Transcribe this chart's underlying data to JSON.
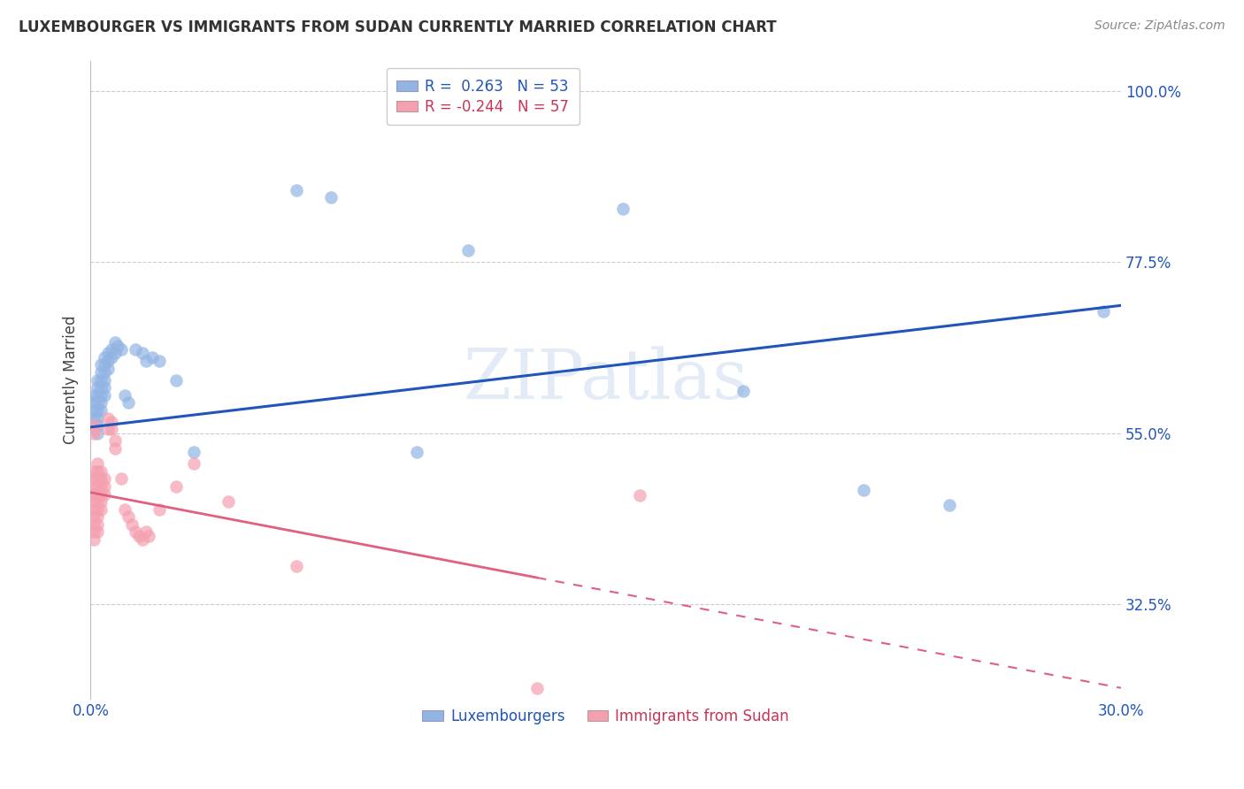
{
  "title": "LUXEMBOURGER VS IMMIGRANTS FROM SUDAN CURRENTLY MARRIED CORRELATION CHART",
  "source": "Source: ZipAtlas.com",
  "ylabel": "Currently Married",
  "y_ticks": [
    0.325,
    0.55,
    0.775,
    1.0
  ],
  "y_tick_labels": [
    "32.5%",
    "55.0%",
    "77.5%",
    "100.0%"
  ],
  "x_min": 0.0,
  "x_max": 0.3,
  "y_min": 0.2,
  "y_max": 1.04,
  "blue_R": 0.263,
  "blue_N": 53,
  "pink_R": -0.244,
  "pink_N": 57,
  "blue_color": "#92B4E3",
  "pink_color": "#F4A0B0",
  "blue_line_color": "#2255BB",
  "pink_line_color": "#E06080",
  "blue_scatter": [
    [
      0.001,
      0.6
    ],
    [
      0.001,
      0.59
    ],
    [
      0.001,
      0.58
    ],
    [
      0.001,
      0.57
    ],
    [
      0.002,
      0.62
    ],
    [
      0.002,
      0.61
    ],
    [
      0.002,
      0.6
    ],
    [
      0.002,
      0.59
    ],
    [
      0.002,
      0.58
    ],
    [
      0.002,
      0.57
    ],
    [
      0.002,
      0.56
    ],
    [
      0.002,
      0.55
    ],
    [
      0.003,
      0.64
    ],
    [
      0.003,
      0.63
    ],
    [
      0.003,
      0.62
    ],
    [
      0.003,
      0.61
    ],
    [
      0.003,
      0.6
    ],
    [
      0.003,
      0.59
    ],
    [
      0.003,
      0.58
    ],
    [
      0.004,
      0.65
    ],
    [
      0.004,
      0.64
    ],
    [
      0.004,
      0.63
    ],
    [
      0.004,
      0.62
    ],
    [
      0.004,
      0.61
    ],
    [
      0.004,
      0.6
    ],
    [
      0.005,
      0.655
    ],
    [
      0.005,
      0.645
    ],
    [
      0.005,
      0.635
    ],
    [
      0.006,
      0.66
    ],
    [
      0.006,
      0.65
    ],
    [
      0.007,
      0.67
    ],
    [
      0.007,
      0.655
    ],
    [
      0.008,
      0.665
    ],
    [
      0.009,
      0.66
    ],
    [
      0.01,
      0.6
    ],
    [
      0.011,
      0.59
    ],
    [
      0.013,
      0.66
    ],
    [
      0.015,
      0.655
    ],
    [
      0.016,
      0.645
    ],
    [
      0.018,
      0.65
    ],
    [
      0.02,
      0.645
    ],
    [
      0.025,
      0.62
    ],
    [
      0.03,
      0.525
    ],
    [
      0.06,
      0.87
    ],
    [
      0.07,
      0.86
    ],
    [
      0.095,
      0.525
    ],
    [
      0.11,
      0.79
    ],
    [
      0.155,
      0.845
    ],
    [
      0.19,
      0.605
    ],
    [
      0.225,
      0.475
    ],
    [
      0.25,
      0.455
    ],
    [
      0.295,
      0.71
    ]
  ],
  "pink_scatter": [
    [
      0.001,
      0.56
    ],
    [
      0.001,
      0.555
    ],
    [
      0.001,
      0.55
    ],
    [
      0.001,
      0.5
    ],
    [
      0.001,
      0.49
    ],
    [
      0.001,
      0.48
    ],
    [
      0.001,
      0.47
    ],
    [
      0.001,
      0.46
    ],
    [
      0.001,
      0.45
    ],
    [
      0.001,
      0.44
    ],
    [
      0.001,
      0.43
    ],
    [
      0.001,
      0.42
    ],
    [
      0.001,
      0.41
    ],
    [
      0.002,
      0.51
    ],
    [
      0.002,
      0.5
    ],
    [
      0.002,
      0.49
    ],
    [
      0.002,
      0.48
    ],
    [
      0.002,
      0.47
    ],
    [
      0.002,
      0.46
    ],
    [
      0.002,
      0.45
    ],
    [
      0.002,
      0.44
    ],
    [
      0.002,
      0.43
    ],
    [
      0.002,
      0.42
    ],
    [
      0.003,
      0.5
    ],
    [
      0.003,
      0.49
    ],
    [
      0.003,
      0.48
    ],
    [
      0.003,
      0.47
    ],
    [
      0.003,
      0.46
    ],
    [
      0.003,
      0.45
    ],
    [
      0.004,
      0.49
    ],
    [
      0.004,
      0.48
    ],
    [
      0.004,
      0.47
    ],
    [
      0.005,
      0.57
    ],
    [
      0.005,
      0.555
    ],
    [
      0.006,
      0.565
    ],
    [
      0.006,
      0.555
    ],
    [
      0.007,
      0.54
    ],
    [
      0.007,
      0.53
    ],
    [
      0.009,
      0.49
    ],
    [
      0.01,
      0.45
    ],
    [
      0.011,
      0.44
    ],
    [
      0.012,
      0.43
    ],
    [
      0.013,
      0.42
    ],
    [
      0.014,
      0.415
    ],
    [
      0.015,
      0.41
    ],
    [
      0.016,
      0.42
    ],
    [
      0.017,
      0.415
    ],
    [
      0.02,
      0.45
    ],
    [
      0.025,
      0.48
    ],
    [
      0.03,
      0.51
    ],
    [
      0.04,
      0.46
    ],
    [
      0.06,
      0.375
    ],
    [
      0.13,
      0.215
    ],
    [
      0.16,
      0.468
    ]
  ],
  "blue_line": [
    [
      0.0,
      0.558
    ],
    [
      0.3,
      0.718
    ]
  ],
  "pink_line_solid": [
    [
      0.0,
      0.472
    ],
    [
      0.13,
      0.36
    ]
  ],
  "pink_line_dashed": [
    [
      0.13,
      0.36
    ],
    [
      0.3,
      0.215
    ]
  ],
  "watermark": "ZIPatlas",
  "legend_label_blue": "Luxembourgers",
  "legend_label_pink": "Immigrants from Sudan"
}
